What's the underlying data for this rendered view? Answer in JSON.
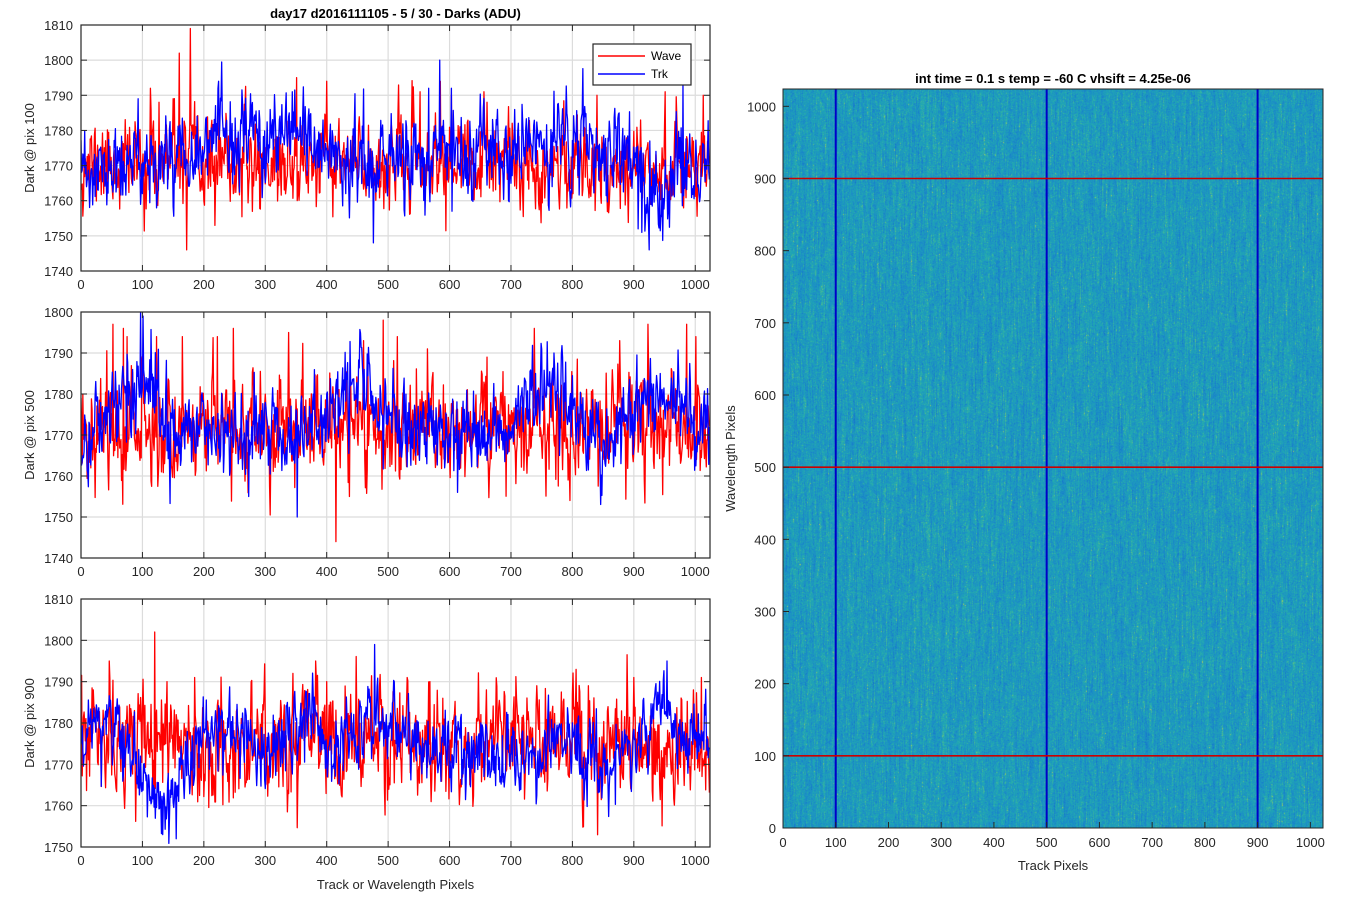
{
  "chart_data": [
    {
      "type": "line",
      "id": "line1",
      "title": "day17 d2016111105 - 5 / 30 - Darks (ADU)",
      "ylabel": "Dark @ pix 100",
      "xlabel": "",
      "xlim": [
        0,
        1024
      ],
      "ylim": [
        1740,
        1810
      ],
      "xticks": [
        0,
        100,
        200,
        300,
        400,
        500,
        600,
        700,
        800,
        900,
        1000
      ],
      "yticks": [
        1740,
        1750,
        1760,
        1770,
        1780,
        1790,
        1800,
        1810
      ],
      "grid": true,
      "legend": "top-right",
      "series": [
        {
          "name": "Wave",
          "color": "#ff0000",
          "mean": 1770.5,
          "std": 6.2,
          "seed": 11,
          "spikes": [
            [
              113,
              1792
            ],
            [
              127,
              1788
            ],
            [
              150,
              1789
            ],
            [
              160,
              1802
            ],
            [
              172,
              1746
            ],
            [
              178,
              1809
            ],
            [
              218,
              1753
            ],
            [
              351,
              1795
            ],
            [
              400,
              1794
            ],
            [
              552,
              1791
            ],
            [
              585,
              1794
            ],
            [
              603,
              1790
            ],
            [
              656,
              1791
            ],
            [
              840,
              1790
            ],
            [
              951,
              1791
            ],
            [
              1013,
              1790
            ]
          ]
        },
        {
          "name": "Trk",
          "color": "#0000ff",
          "mean": 1771.5,
          "std": 6.0,
          "seed": 23,
          "slow": [
            [
              0,
              1766
            ],
            [
              100,
              1770
            ],
            [
              200,
              1777
            ],
            [
              350,
              1777
            ],
            [
              470,
              1770
            ],
            [
              550,
              1772
            ],
            [
              620,
              1772
            ],
            [
              700,
              1773
            ],
            [
              780,
              1777
            ],
            [
              860,
              1774
            ],
            [
              910,
              1770
            ],
            [
              940,
              1758
            ],
            [
              970,
              1766
            ],
            [
              1024,
              1772
            ]
          ],
          "spikes": [
            [
              93,
              1789
            ],
            [
              344,
              1791
            ],
            [
              476,
              1748
            ],
            [
              566,
              1792
            ],
            [
              584,
              1800
            ],
            [
              603,
              1792
            ],
            [
              678,
              1786
            ],
            [
              907,
              1752
            ],
            [
              913,
              1751
            ],
            [
              925,
              1746
            ],
            [
              980,
              1793
            ]
          ]
        }
      ]
    },
    {
      "type": "line",
      "id": "line2",
      "title": "",
      "ylabel": "Dark @ pix 500",
      "xlabel": "",
      "xlim": [
        0,
        1024
      ],
      "ylim": [
        1740,
        1800
      ],
      "xticks": [
        0,
        100,
        200,
        300,
        400,
        500,
        600,
        700,
        800,
        900,
        1000
      ],
      "yticks": [
        1740,
        1750,
        1760,
        1770,
        1780,
        1790,
        1800
      ],
      "grid": true,
      "series": [
        {
          "name": "Wave",
          "color": "#ff0000",
          "mean": 1772,
          "std": 6.5,
          "seed": 37,
          "spikes": [
            [
              52,
              1797
            ],
            [
              69,
              1796
            ],
            [
              75,
              1794
            ],
            [
              123,
              1794
            ],
            [
              165,
              1794
            ],
            [
              222,
              1794
            ],
            [
              248,
              1796
            ],
            [
              338,
              1795
            ],
            [
              415,
              1744
            ],
            [
              460,
              1793
            ],
            [
              492,
              1798
            ],
            [
              515,
              1794
            ],
            [
              564,
              1791
            ],
            [
              661,
              1789
            ],
            [
              738,
              1796
            ],
            [
              877,
              1793
            ],
            [
              923,
              1797
            ],
            [
              986,
              1797
            ],
            [
              1001,
              1794
            ]
          ]
        },
        {
          "name": "Trk",
          "color": "#0000ff",
          "mean": 1771,
          "std": 5.2,
          "seed": 41,
          "slow": [
            [
              0,
              1768
            ],
            [
              60,
              1778
            ],
            [
              100,
              1784
            ],
            [
              150,
              1772
            ],
            [
              250,
              1770
            ],
            [
              370,
              1772
            ],
            [
              450,
              1783
            ],
            [
              520,
              1772
            ],
            [
              600,
              1770
            ],
            [
              700,
              1772
            ],
            [
              750,
              1783
            ],
            [
              800,
              1778
            ],
            [
              850,
              1768
            ],
            [
              920,
              1780
            ],
            [
              980,
              1776
            ],
            [
              1024,
              1772
            ]
          ],
          "spikes": [
            [
              97,
              1800
            ],
            [
              101,
              1799
            ],
            [
              273,
              1755
            ],
            [
              352,
              1750
            ],
            [
              613,
              1756
            ],
            [
              770,
              1790
            ]
          ]
        }
      ]
    },
    {
      "type": "line",
      "id": "line3",
      "title": "",
      "ylabel": "Dark @ pix 900",
      "xlabel": "Track or Wavelength Pixels",
      "xlim": [
        0,
        1024
      ],
      "ylim": [
        1750,
        1810
      ],
      "xticks": [
        0,
        100,
        200,
        300,
        400,
        500,
        600,
        700,
        800,
        900,
        1000
      ],
      "yticks": [
        1750,
        1760,
        1770,
        1780,
        1790,
        1800,
        1810
      ],
      "grid": true,
      "series": [
        {
          "name": "Wave",
          "color": "#ff0000",
          "mean": 1775,
          "std": 6.6,
          "seed": 53,
          "spikes": [
            [
              20,
              1788
            ],
            [
              46,
              1795
            ],
            [
              120,
              1802
            ],
            [
              140,
              1790
            ],
            [
              185,
              1791
            ],
            [
              277,
              1790
            ],
            [
              345,
              1792
            ],
            [
              400,
              1790
            ],
            [
              486,
              1789
            ],
            [
              531,
              1791
            ],
            [
              568,
              1790
            ],
            [
              660,
              1788
            ],
            [
              742,
              1789
            ],
            [
              826,
              1789
            ],
            [
              900,
              1791
            ],
            [
              1010,
              1791
            ]
          ]
        },
        {
          "name": "Trk",
          "color": "#0000ff",
          "mean": 1773,
          "std": 4.6,
          "seed": 61,
          "slow": [
            [
              0,
              1776
            ],
            [
              50,
              1782
            ],
            [
              100,
              1766
            ],
            [
              150,
              1762
            ],
            [
              200,
              1777
            ],
            [
              250,
              1776
            ],
            [
              300,
              1771
            ],
            [
              370,
              1782
            ],
            [
              420,
              1774
            ],
            [
              480,
              1780
            ],
            [
              560,
              1774
            ],
            [
              640,
              1772
            ],
            [
              700,
              1770
            ],
            [
              780,
              1776
            ],
            [
              860,
              1768
            ],
            [
              950,
              1786
            ],
            [
              980,
              1775
            ],
            [
              1024,
              1778
            ]
          ],
          "spikes": [
            [
              133,
              1753
            ],
            [
              155,
              1752
            ],
            [
              478,
              1799
            ],
            [
              954,
              1795
            ]
          ]
        }
      ]
    },
    {
      "type": "heatmap",
      "id": "image1",
      "title": "int time = 0.1 s   temp = -60 C   vhsift = 4.25e-06",
      "xlabel": "Track Pixels",
      "ylabel": "Wavelength Pixels",
      "xlim": [
        0,
        1024
      ],
      "ylim": [
        0,
        1024
      ],
      "xticks": [
        0,
        100,
        200,
        300,
        400,
        500,
        600,
        700,
        800,
        900,
        1000
      ],
      "yticks": [
        0,
        100,
        200,
        300,
        400,
        500,
        600,
        700,
        800,
        900,
        1000
      ],
      "colormap": [
        "#1b86c9",
        "#1ea5b8",
        "#3bb69a",
        "#9bc86b"
      ],
      "vlines": {
        "values": [
          100,
          500,
          900
        ],
        "color": "#0000c8"
      },
      "hlines": {
        "values": [
          100,
          500,
          900
        ],
        "color": "#cc0000"
      }
    }
  ]
}
